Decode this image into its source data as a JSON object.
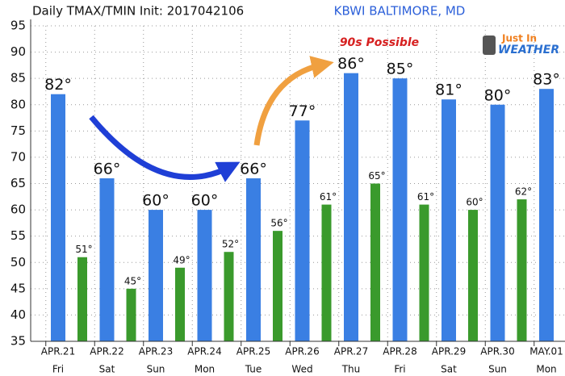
{
  "chart_data": {
    "type": "bar",
    "title": "Daily TMAX/TMIN Init: 2017042106",
    "subtitle": "KBWI BALTIMORE, MD",
    "annotation": "90s Possible",
    "logo": [
      "Just In",
      "WEATHER"
    ],
    "categories": [
      "APR.21",
      "APR.22",
      "APR.23",
      "APR.24",
      "APR.25",
      "APR.26",
      "APR.27",
      "APR.28",
      "APR.29",
      "APR.30",
      "MAY.01"
    ],
    "weekdays": [
      "Fri",
      "Sat",
      "Sun",
      "Mon",
      "Tue",
      "Wed",
      "Thu",
      "Fri",
      "Sat",
      "Sun",
      "Mon"
    ],
    "series": [
      {
        "color": "#3a7fe3",
        "values": [
          82,
          66,
          60,
          60,
          66,
          77,
          86,
          85,
          81,
          80,
          83
        ],
        "value_labels": [
          "82°",
          "66°",
          "60°",
          "60°",
          "66°",
          "77°",
          "86°",
          "85°",
          "81°",
          "80°",
          "83°"
        ]
      },
      {
        "color": "#3a9a2c",
        "values": [
          51,
          45,
          49,
          52,
          56,
          61,
          65,
          61,
          60,
          62,
          null
        ],
        "value_labels": [
          "51°",
          "45°",
          "49°",
          "52°",
          "56°",
          "61°",
          "65°",
          "61°",
          "60°",
          "62°",
          null
        ]
      }
    ],
    "ylim": [
      35,
      95
    ],
    "yticks": [
      35,
      40,
      45,
      50,
      55,
      60,
      65,
      70,
      75,
      80,
      85,
      90,
      95
    ],
    "grid": true
  }
}
